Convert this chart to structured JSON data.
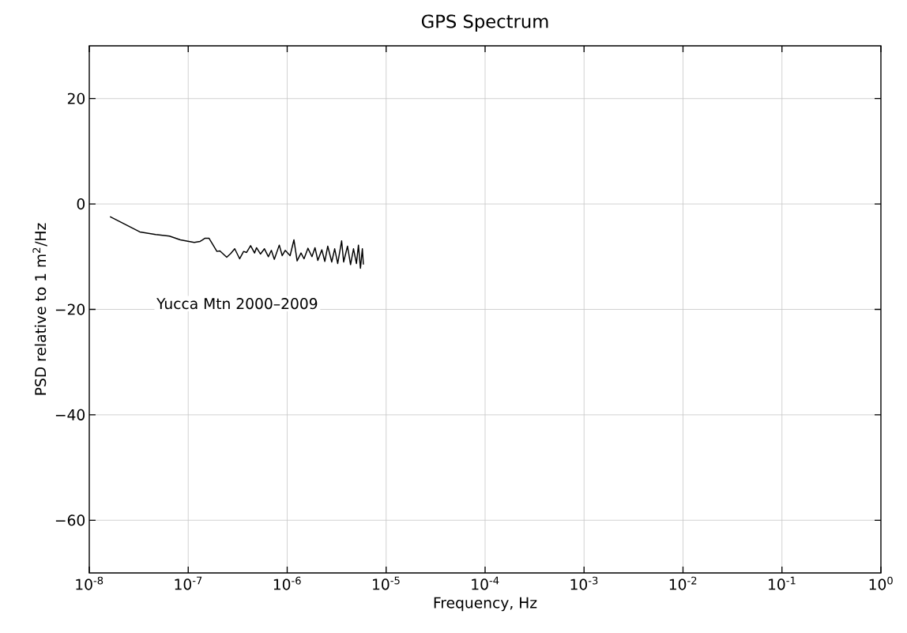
{
  "chart_data": {
    "type": "line",
    "title": "GPS Spectrum",
    "xlabel": "Frequency, Hz",
    "ylabel": "PSD relative to 1 m$^{2}$/Hz",
    "log": "x",
    "grid": true,
    "color": "#000000",
    "xlim": [
      1e-08,
      1
    ],
    "ylim": [
      -70,
      30
    ],
    "xticks": [
      {
        "value": 1e-08,
        "label": "10$^{-8}$"
      },
      {
        "value": 1e-07,
        "label": "10$^{-7}$"
      },
      {
        "value": 1e-06,
        "label": "10$^{-6}$"
      },
      {
        "value": 1e-05,
        "label": "10$^{-5}$"
      },
      {
        "value": 0.0001,
        "label": "10$^{-4}$"
      },
      {
        "value": 0.001,
        "label": "10$^{-3}$"
      },
      {
        "value": 0.01,
        "label": "10$^{-2}$"
      },
      {
        "value": 0.1,
        "label": "10$^{-1}$"
      },
      {
        "value": 1,
        "label": "10$^{0}$"
      }
    ],
    "yticks": [
      {
        "value": -60,
        "label": "−60"
      },
      {
        "value": -40,
        "label": "−40"
      },
      {
        "value": -20,
        "label": "−20"
      },
      0,
      20
    ],
    "annotations": [
      "Yucca Mtn 2000–2009"
    ],
    "x": [
      1.62e-08,
      3.24e-08,
      4.68e-08,
      6.46e-08,
      8.32e-08,
      1.15e-07,
      1.32e-07,
      1.48e-07,
      1.62e-07,
      1.95e-07,
      2.09e-07,
      2.45e-07,
      2.69e-07,
      2.95e-07,
      3.31e-07,
      3.63e-07,
      3.89e-07,
      4.27e-07,
      4.68e-07,
      4.9e-07,
      5.37e-07,
      5.89e-07,
      6.46e-07,
      6.92e-07,
      7.41e-07,
      8.32e-07,
      8.91e-07,
      9.55e-07,
      1.07e-06,
      1.17e-06,
      1.26e-06,
      1.38e-06,
      1.48e-06,
      1.62e-06,
      1.78e-06,
      1.91e-06,
      2.04e-06,
      2.24e-06,
      2.4e-06,
      2.57e-06,
      2.82e-06,
      3.02e-06,
      3.24e-06,
      3.55e-06,
      3.72e-06,
      4.07e-06,
      4.37e-06,
      4.68e-06,
      5.01e-06,
      5.25e-06,
      5.5e-06,
      5.75e-06,
      5.89e-06
    ],
    "values": [
      -2.4,
      -5.3,
      -5.8,
      -6.1,
      -6.8,
      -7.3,
      -7.1,
      -6.5,
      -6.5,
      -9.0,
      -8.9,
      -10.1,
      -9.4,
      -8.5,
      -10.4,
      -9.0,
      -9.2,
      -7.9,
      -9.3,
      -8.3,
      -9.5,
      -8.5,
      -10.0,
      -8.8,
      -10.5,
      -7.8,
      -9.8,
      -8.8,
      -9.8,
      -6.8,
      -10.8,
      -9.3,
      -10.4,
      -8.4,
      -10.0,
      -8.3,
      -10.7,
      -8.7,
      -10.9,
      -8.0,
      -11.0,
      -8.5,
      -11.3,
      -7.0,
      -11.0,
      -8.0,
      -11.5,
      -8.5,
      -11.3,
      -7.8,
      -12.2,
      -8.5,
      -11.5
    ]
  }
}
